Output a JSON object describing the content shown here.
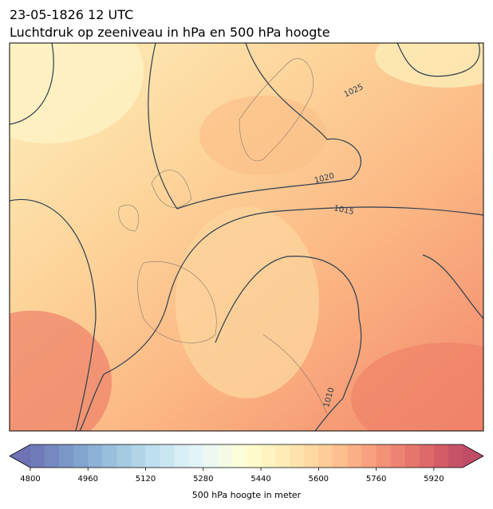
{
  "header": {
    "date": "23-05-1826 12 UTC",
    "title": "Luchtdruk op zeeniveau in hPa en 500 hPa hoogte"
  },
  "map": {
    "contour_labels": [
      1025,
      1020,
      1015,
      1010
    ]
  },
  "colorbar": {
    "label": "500 hPa hoogte in meter",
    "lim": [
      4800,
      6000
    ],
    "step": 40,
    "ticks": [
      4800,
      4960,
      5120,
      5280,
      5440,
      5600,
      5760,
      5920
    ],
    "extend": "both",
    "cmap": "RdYlBu_r",
    "alpha": 0.7
  }
}
